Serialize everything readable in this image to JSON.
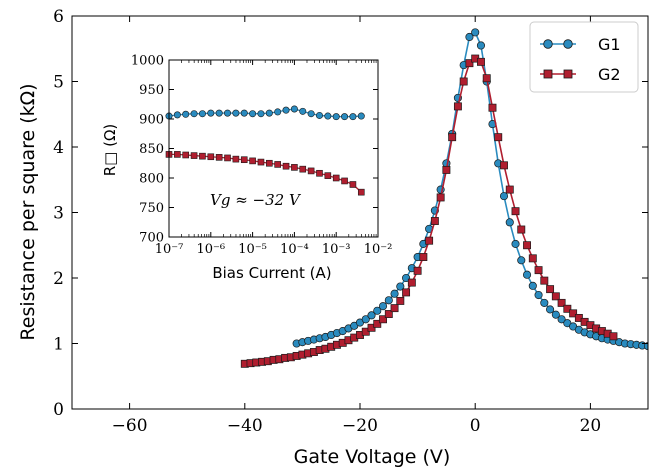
{
  "chart_data": [
    {
      "type": "line",
      "xlabel": "Gate Voltage (V)",
      "ylabel": "Resistance per square (kΩ)",
      "xlim": [
        -70,
        30
      ],
      "ylim": [
        0,
        6
      ],
      "xticks": [
        -60,
        -40,
        -20,
        0,
        20
      ],
      "xtick_labels": [
        "−60",
        "−40",
        "−20",
        "0",
        "20"
      ],
      "yticks": [
        0,
        1,
        2,
        3,
        4,
        5,
        6
      ],
      "ytick_labels": [
        "0",
        "1",
        "2",
        "3",
        "4",
        "5",
        "6"
      ],
      "legend_position": "top-right",
      "series": [
        {
          "name": "G1",
          "color": "#2a8bbf",
          "marker": "circle",
          "x": [
            -31,
            -30,
            -29,
            -28,
            -27,
            -26,
            -25,
            -24,
            -23,
            -22,
            -21,
            -20,
            -19,
            -18,
            -17,
            -16,
            -15,
            -14,
            -13,
            -12,
            -11,
            -10,
            -9,
            -8,
            -7,
            -6,
            -5,
            -4,
            -3,
            -2,
            -1,
            0,
            1,
            2,
            3,
            4,
            5,
            6,
            7,
            8,
            9,
            10,
            11,
            12,
            13,
            14,
            15,
            16,
            17,
            18,
            19,
            20,
            21,
            22,
            23,
            24,
            25,
            26,
            27,
            28,
            29,
            30
          ],
          "y": [
            1.0,
            1.02,
            1.04,
            1.06,
            1.08,
            1.1,
            1.13,
            1.16,
            1.19,
            1.23,
            1.27,
            1.32,
            1.37,
            1.43,
            1.5,
            1.57,
            1.66,
            1.76,
            1.87,
            2.0,
            2.15,
            2.32,
            2.52,
            2.75,
            3.03,
            3.35,
            3.75,
            4.2,
            4.75,
            5.25,
            5.68,
            5.75,
            5.55,
            5.0,
            4.35,
            3.75,
            3.25,
            2.85,
            2.52,
            2.27,
            2.05,
            1.88,
            1.74,
            1.62,
            1.52,
            1.44,
            1.37,
            1.31,
            1.26,
            1.21,
            1.17,
            1.14,
            1.11,
            1.08,
            1.06,
            1.04,
            1.02,
            1.0,
            0.99,
            0.98,
            0.97,
            0.96
          ]
        },
        {
          "name": "G2",
          "color": "#b01e2f",
          "marker": "square",
          "x": [
            -40,
            -39,
            -38,
            -37,
            -36,
            -35,
            -34,
            -33,
            -32,
            -31,
            -30,
            -29,
            -28,
            -27,
            -26,
            -25,
            -24,
            -23,
            -22,
            -21,
            -20,
            -19,
            -18,
            -17,
            -16,
            -15,
            -14,
            -13,
            -12,
            -11,
            -10,
            -9,
            -8,
            -7,
            -6,
            -5,
            -4,
            -3,
            -2,
            -1,
            0,
            1,
            2,
            3,
            4,
            5,
            6,
            7,
            8,
            9,
            10,
            11,
            12,
            13,
            14,
            15,
            16,
            17,
            18,
            19,
            20,
            21,
            22,
            23,
            24
          ],
          "y": [
            0.69,
            0.7,
            0.71,
            0.72,
            0.73,
            0.75,
            0.76,
            0.78,
            0.79,
            0.81,
            0.83,
            0.85,
            0.87,
            0.9,
            0.92,
            0.95,
            0.98,
            1.01,
            1.05,
            1.09,
            1.13,
            1.18,
            1.24,
            1.3,
            1.37,
            1.45,
            1.54,
            1.65,
            1.78,
            1.93,
            2.11,
            2.32,
            2.57,
            2.87,
            3.23,
            3.65,
            4.15,
            4.62,
            5.0,
            5.28,
            5.35,
            5.3,
            5.05,
            4.6,
            4.15,
            3.72,
            3.35,
            3.02,
            2.74,
            2.5,
            2.3,
            2.12,
            1.96,
            1.83,
            1.72,
            1.62,
            1.53,
            1.46,
            1.39,
            1.33,
            1.28,
            1.23,
            1.19,
            1.15,
            1.11
          ]
        }
      ]
    },
    {
      "type": "line",
      "inset": true,
      "xlabel": "Bias Current (A)",
      "ylabel": "R□ (Ω)",
      "x_scale": "log",
      "xlim": [
        1e-07,
        0.01
      ],
      "ylim": [
        700,
        1000
      ],
      "xtick_labels": [
        "10⁻⁷",
        "10⁻⁶",
        "10⁻⁵",
        "10⁻⁴",
        "10⁻³",
        "10⁻²"
      ],
      "ytick_labels": [
        "700",
        "750",
        "800",
        "850",
        "900",
        "950",
        "1000"
      ],
      "yticks": [
        700,
        750,
        800,
        850,
        900,
        950,
        1000
      ],
      "annotation": "Vg ≈ −32 V",
      "series": [
        {
          "name": "G1",
          "color": "#2a8bbf",
          "marker": "circle",
          "log10_x": [
            -7.0,
            -6.8,
            -6.6,
            -6.4,
            -6.2,
            -6.0,
            -5.8,
            -5.6,
            -5.4,
            -5.2,
            -5.0,
            -4.8,
            -4.6,
            -4.4,
            -4.2,
            -4.0,
            -3.8,
            -3.6,
            -3.4,
            -3.2,
            -3.0,
            -2.8,
            -2.6,
            -2.4
          ],
          "y": [
            905,
            907,
            908,
            909,
            909,
            910,
            910,
            910,
            910,
            910,
            909,
            909,
            910,
            912,
            915,
            917,
            913,
            909,
            906,
            905,
            904,
            904,
            904,
            905
          ]
        },
        {
          "name": "G2",
          "color": "#b01e2f",
          "marker": "square",
          "log10_x": [
            -7.0,
            -6.8,
            -6.6,
            -6.4,
            -6.2,
            -6.0,
            -5.8,
            -5.6,
            -5.4,
            -5.2,
            -5.0,
            -4.8,
            -4.6,
            -4.4,
            -4.2,
            -4.0,
            -3.8,
            -3.6,
            -3.4,
            -3.2,
            -3.0,
            -2.8,
            -2.6,
            -2.4
          ],
          "y": [
            840,
            840,
            839,
            838,
            837,
            836,
            835,
            834,
            832,
            831,
            829,
            827,
            825,
            823,
            820,
            818,
            815,
            812,
            808,
            804,
            800,
            795,
            789,
            776
          ]
        }
      ]
    }
  ]
}
